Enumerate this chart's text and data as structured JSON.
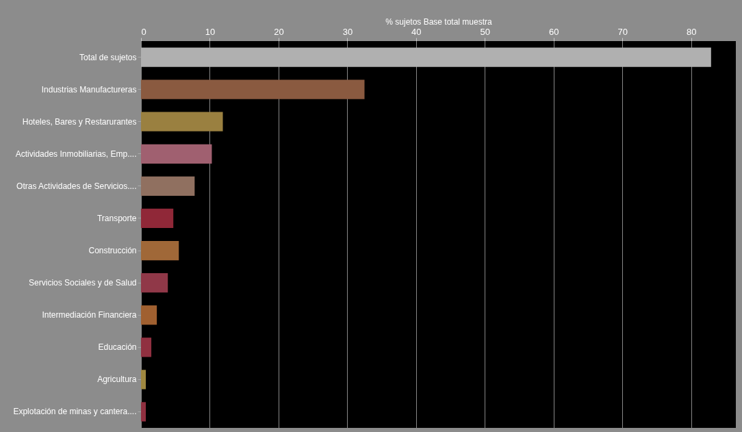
{
  "chart_data": {
    "type": "bar",
    "orientation": "horizontal",
    "xlabel": "% sujetos Base total muestra",
    "categories": [
      "Total de sujetos",
      "Industrias Manufactureras",
      "Hoteles, Bares y Restarurantes",
      "Actividades Inmobiliarias, Emp....",
      "Otras Actividades de Servicios....",
      "Transporte",
      "Construcción",
      "Servicios Sociales y de Salud",
      "Intermediación Financiera",
      "Educación",
      "Agricultura",
      "Explotación de minas y cantera...."
    ],
    "values": [
      82.9,
      32.5,
      11.9,
      10.3,
      7.8,
      4.7,
      5.5,
      3.9,
      2.3,
      1.5,
      0.7,
      0.7
    ],
    "colors": [
      "#b0b0b0",
      "#8a5a40",
      "#9a8040",
      "#a06070",
      "#907060",
      "#902838",
      "#a06838",
      "#903848",
      "#a06030",
      "#903040",
      "#a08840",
      "#903040"
    ],
    "xlim": [
      0,
      86.5
    ],
    "xticks": [
      0,
      10,
      20,
      30,
      40,
      50,
      60,
      70,
      80
    ],
    "grid": "x"
  }
}
